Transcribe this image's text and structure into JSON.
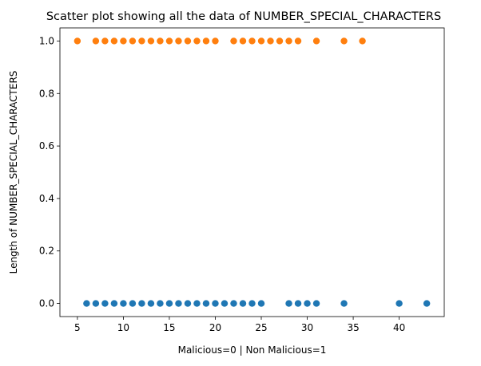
{
  "chart_data": {
    "type": "scatter",
    "title": "Scatter plot showing all the data of NUMBER_SPECIAL_CHARACTERS",
    "xlabel": "Malicious=0 | Non Malicious=1",
    "ylabel": "Length of NUMBER_SPECIAL_CHARACTERS",
    "xlim": [
      3.1,
      44.9
    ],
    "ylim": [
      -0.05,
      1.05
    ],
    "x_ticks": [
      5,
      10,
      15,
      20,
      25,
      30,
      35,
      40
    ],
    "y_ticks": [
      0.0,
      0.2,
      0.4,
      0.6,
      0.8,
      1.0
    ],
    "y_tick_labels": [
      "0.0",
      "0.2",
      "0.4",
      "0.6",
      "0.8",
      "1.0"
    ],
    "grid": false,
    "series": [
      {
        "color": "#1f77b4",
        "points": [
          [
            6,
            0
          ],
          [
            7,
            0
          ],
          [
            8,
            0
          ],
          [
            9,
            0
          ],
          [
            10,
            0
          ],
          [
            11,
            0
          ],
          [
            12,
            0
          ],
          [
            13,
            0
          ],
          [
            14,
            0
          ],
          [
            15,
            0
          ],
          [
            16,
            0
          ],
          [
            17,
            0
          ],
          [
            18,
            0
          ],
          [
            19,
            0
          ],
          [
            20,
            0
          ],
          [
            21,
            0
          ],
          [
            22,
            0
          ],
          [
            23,
            0
          ],
          [
            24,
            0
          ],
          [
            25,
            0
          ],
          [
            28,
            0
          ],
          [
            29,
            0
          ],
          [
            30,
            0
          ],
          [
            31,
            0
          ],
          [
            34,
            0
          ],
          [
            40,
            0
          ],
          [
            43,
            0
          ]
        ]
      },
      {
        "color": "#ff7f0e",
        "points": [
          [
            5,
            1
          ],
          [
            7,
            1
          ],
          [
            8,
            1
          ],
          [
            9,
            1
          ],
          [
            10,
            1
          ],
          [
            11,
            1
          ],
          [
            12,
            1
          ],
          [
            13,
            1
          ],
          [
            14,
            1
          ],
          [
            15,
            1
          ],
          [
            16,
            1
          ],
          [
            17,
            1
          ],
          [
            18,
            1
          ],
          [
            19,
            1
          ],
          [
            20,
            1
          ],
          [
            22,
            1
          ],
          [
            23,
            1
          ],
          [
            24,
            1
          ],
          [
            25,
            1
          ],
          [
            26,
            1
          ],
          [
            27,
            1
          ],
          [
            28,
            1
          ],
          [
            29,
            1
          ],
          [
            31,
            1
          ],
          [
            34,
            1
          ],
          [
            36,
            1
          ]
        ]
      }
    ]
  }
}
